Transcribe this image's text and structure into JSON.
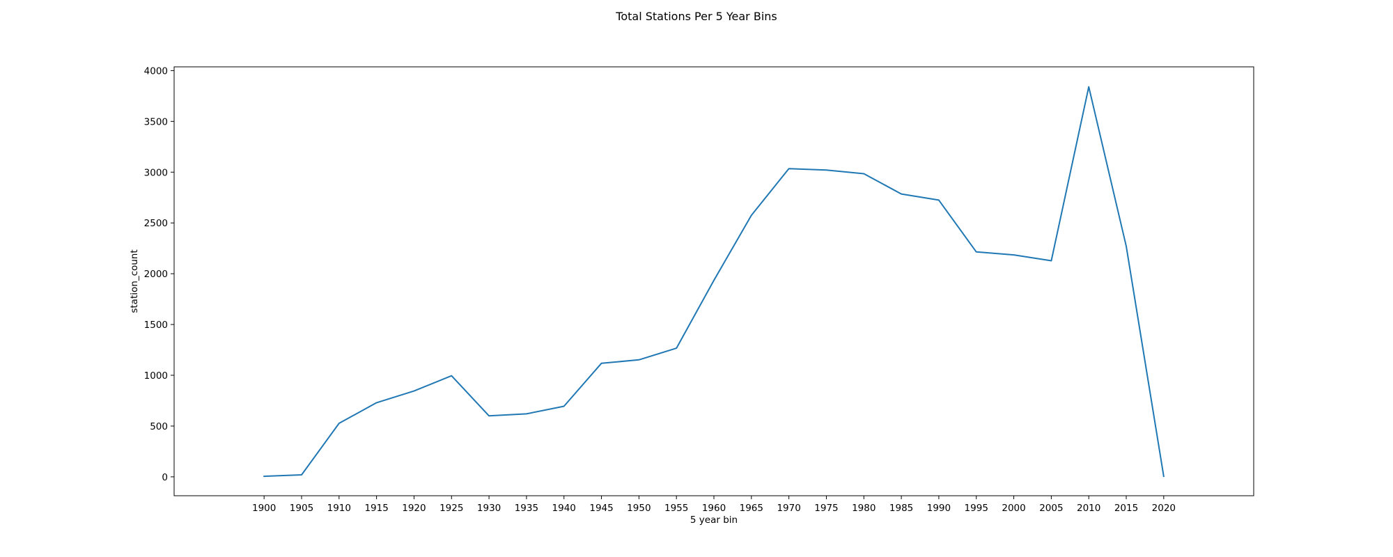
{
  "chart_data": {
    "type": "line",
    "title": "Total Stations Per 5 Year Bins",
    "xlabel": "5 year bin",
    "ylabel": "station_count",
    "x": [
      1900,
      1905,
      1910,
      1915,
      1920,
      1925,
      1930,
      1935,
      1940,
      1945,
      1950,
      1955,
      1960,
      1965,
      1970,
      1975,
      1980,
      1985,
      1990,
      1995,
      2000,
      2005,
      2010,
      2015,
      2020
    ],
    "series": [
      {
        "values": [
          5,
          20,
          527,
          730,
          845,
          995,
          600,
          620,
          695,
          1118,
          1152,
          1267,
          1935,
          2575,
          3035,
          3020,
          2985,
          2785,
          2725,
          2215,
          2185,
          2128,
          3840,
          2270,
          5
        ],
        "color": "#1f77b4"
      }
    ],
    "x_ticks": [
      "1900",
      "1905",
      "1910",
      "1915",
      "1920",
      "1925",
      "1930",
      "1935",
      "1940",
      "1945",
      "1950",
      "1955",
      "1960",
      "1965",
      "1970",
      "1975",
      "1980",
      "1985",
      "1990",
      "1995",
      "2000",
      "2005",
      "2010",
      "2015",
      "2020"
    ],
    "y_ticks": [
      0,
      500,
      1000,
      1500,
      2000,
      2500,
      3000,
      3500,
      4000
    ],
    "xlim": [
      1888,
      2032
    ],
    "ylim": [
      -186,
      4037
    ],
    "grid": false,
    "legend": "none"
  }
}
